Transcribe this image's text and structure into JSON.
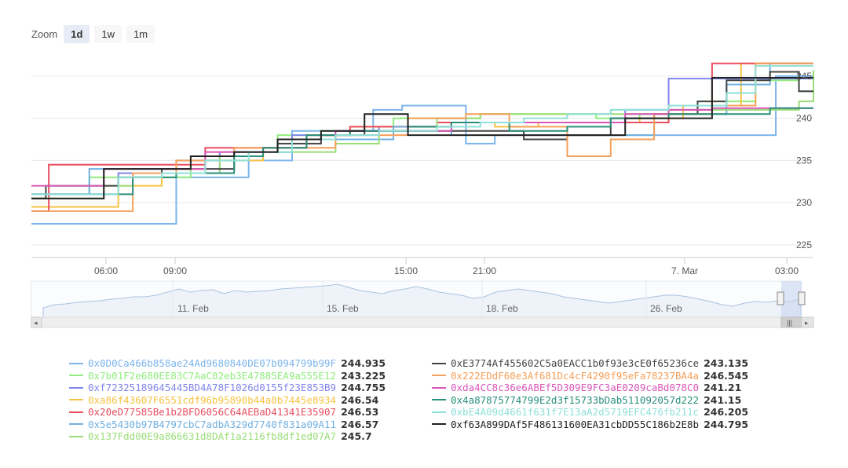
{
  "zoom": {
    "label": "Zoom",
    "buttons": [
      "1d",
      "1w",
      "1m"
    ],
    "active": 0
  },
  "navigator": {
    "labels": [
      "11. Feb",
      "15. Feb",
      "18. Feb",
      "26. Feb"
    ],
    "scroll_grip": "|||",
    "scroll_left": "◂",
    "scroll_right": "▸"
  },
  "chart_data": {
    "type": "line",
    "step": true,
    "x_ticks": [
      "06:00",
      "09:00",
      "15:00",
      "21:00",
      "7. Mar",
      "03:00"
    ],
    "y_ticks": [
      225,
      230,
      235,
      240,
      245
    ],
    "ylim": [
      223.5,
      247.5
    ],
    "y_axis_side": "right",
    "grid": true,
    "legend_position": "bottom",
    "series": [
      {
        "name": "0x0D0Ca466b858ae24Ad9680840DE07b094799b99F",
        "last": "244.935",
        "color": "#7cb5ec",
        "x": [
          0,
          5,
          7,
          7.5,
          9,
          10,
          11.8,
          12.8,
          15,
          16,
          17.5,
          23.5,
          25.5,
          25.7
        ],
        "y": [
          227.5,
          233,
          233,
          235,
          238.5,
          238.5,
          241,
          241.5,
          237,
          238,
          238,
          238,
          238,
          245
        ]
      },
      {
        "name": "0x7b01F2e680EE83C7AaC02eb3E47885EA9a555E12",
        "last": "243.225",
        "color": "#90ed7d",
        "x": [
          0,
          1,
          2,
          3.5,
          5.5,
          7,
          8.5,
          10,
          11.5,
          12.5,
          14,
          15.5,
          17.5,
          19.5,
          21,
          22,
          23,
          25,
          26.5
        ],
        "y": [
          231,
          231,
          233,
          233,
          235.5,
          236,
          238,
          238.5,
          239,
          240,
          240,
          240.5,
          240.5,
          240,
          240.5,
          240.5,
          242,
          244.5,
          243.2
        ]
      },
      {
        "name": "0xf72325189645445BD4A78F1026d0155f23E853B9",
        "last": "244.755",
        "color": "#8085e9",
        "x": [
          0,
          1.5,
          3,
          5,
          6.5,
          7.5,
          9,
          10.5,
          12,
          14,
          15.5,
          17,
          19,
          20.5,
          22
        ],
        "y": [
          231,
          231,
          233.5,
          233.5,
          236,
          236,
          238,
          238.5,
          239,
          239.5,
          239.5,
          239.5,
          239.5,
          241,
          244.7
        ]
      },
      {
        "name": "0xa86f43607F6551cdf96b95890b44a0b7445e8934",
        "last": "246.54",
        "color": "#f7c342",
        "x": [
          0,
          1,
          3,
          4.5,
          6,
          8,
          9.5,
          11,
          13,
          14.5,
          16,
          17.5,
          19,
          21,
          22.5,
          24.5
        ],
        "y": [
          229.5,
          229.5,
          232,
          234,
          235,
          236.5,
          238,
          239,
          239,
          239.5,
          239,
          239.5,
          239.5,
          240,
          241.5,
          246.5
        ]
      },
      {
        "name": "0x20eD77585Be1b2BFD6056C64AEBaD41341E35907",
        "last": "246.53",
        "color": "#e94f62",
        "x": [
          0,
          0.6,
          2.5,
          4,
          6,
          8,
          9.5,
          11,
          12.5,
          14,
          15.5,
          17,
          19,
          20.5,
          22,
          23.5
        ],
        "y": [
          229,
          234.5,
          234.5,
          234.5,
          236.5,
          236.5,
          238,
          239,
          239,
          239.5,
          239.5,
          239.5,
          239.5,
          239.5,
          241,
          246.5
        ]
      },
      {
        "name": "0x5e5430b97B4797cbC7adbA329d7740f831a09A11",
        "last": "246.57",
        "color": "#6fb0e0",
        "x": [
          0,
          1,
          2,
          4,
          5,
          6.5,
          7.5,
          9,
          10.5,
          12.5,
          14.5,
          16,
          18,
          20,
          21.5,
          24,
          25.5
        ],
        "y": [
          231,
          231,
          234,
          234,
          235,
          235.5,
          236,
          237.5,
          237.5,
          239,
          238,
          238,
          238,
          238,
          240.5,
          244,
          246.5
        ]
      },
      {
        "name": "0x137Fdd00E9a866631d8DAf1a2116fb8df1ed07A7",
        "last": "245.7",
        "color": "#99dd77",
        "x": [
          0,
          2.5,
          3.5,
          5,
          6.5,
          7.5,
          9,
          10.5,
          12,
          14,
          15.5,
          17.5,
          19.5,
          22,
          24,
          26.5,
          27
        ],
        "y": [
          230.5,
          232,
          233,
          233.5,
          235.5,
          236,
          236,
          237,
          238.5,
          240,
          240.5,
          240.5,
          240.5,
          241,
          241,
          242,
          245.7
        ]
      },
      {
        "name": "0xE3774Af455602C5a0EACC1b0f93e3cE0f65236ce",
        "last": "243.135",
        "color": "#444444",
        "x": [
          0,
          0.5,
          2,
          3,
          4.5,
          6,
          7,
          8.5,
          10,
          11.5,
          13,
          15,
          17,
          18.5,
          20,
          21.5,
          23,
          24,
          25.5,
          26.5
        ],
        "y": [
          230.5,
          232,
          232,
          233,
          234,
          234,
          236,
          237,
          238,
          238.5,
          238.5,
          238.5,
          237.5,
          238,
          240,
          240.5,
          242,
          244.5,
          245.5,
          243.2
        ]
      },
      {
        "name": "0x222EDdF60e3Af681Dc4cF4290f95eFa78237BA4a",
        "last": "246.545",
        "color": "#f5a05a",
        "x": [
          0,
          2,
          3.5,
          5,
          7,
          8.5,
          10.5,
          11.5,
          13,
          15,
          16.5,
          18.5,
          20,
          21.5,
          23.5,
          25
        ],
        "y": [
          229,
          229,
          233.5,
          235,
          236.5,
          236.5,
          238,
          238,
          240,
          240.5,
          239,
          235.5,
          237.5,
          240.5,
          241.5,
          246.5
        ]
      },
      {
        "name": "0xda4CC8c36e6ABEf5D309E9FC3aE0209caBd078C0",
        "last": "241.21",
        "color": "#d857b8",
        "x": [
          0,
          0.8,
          2.5,
          4,
          6,
          8,
          9,
          10.5,
          13,
          14.5,
          16,
          17.5,
          19,
          20.5,
          22,
          23.5
        ],
        "y": [
          232,
          232,
          234,
          234,
          236,
          236.5,
          237.5,
          238.5,
          238.5,
          239.5,
          239.5,
          239.5,
          239.5,
          240.5,
          241,
          241.2
        ]
      },
      {
        "name": "0x4a87875774799E2d3f15733bDab511092057d222",
        "last": "241.15",
        "color": "#2a8f7a",
        "x": [
          0,
          1.5,
          3.5,
          5,
          7,
          8,
          9.5,
          11,
          13,
          14.5,
          16.5,
          18.5,
          20,
          22,
          24,
          25.5
        ],
        "y": [
          231,
          231,
          233,
          233.5,
          235.5,
          236.5,
          238,
          238.5,
          239,
          239.5,
          238.5,
          239,
          240,
          240.5,
          240.5,
          241.2
        ]
      },
      {
        "name": "0xbE4A09d4661f631f7E13aA2d5719EFC476fb211c",
        "last": "246.205",
        "color": "#8fe0d8",
        "x": [
          0,
          1,
          3,
          4.5,
          6,
          7.5,
          9,
          10.5,
          12,
          14,
          15.5,
          17,
          18.5,
          20,
          22,
          24,
          25
        ],
        "y": [
          231,
          231,
          233,
          233.5,
          235,
          236,
          237.5,
          238,
          238.5,
          239,
          239.5,
          240,
          240.5,
          241,
          241.5,
          243,
          246.2
        ]
      },
      {
        "name": "0xf63A899DAf5F486131600EA31cbDD55C186b2E8b",
        "last": "244.795",
        "color": "#222222",
        "x": [
          0,
          0.5,
          2.5,
          4,
          5.5,
          7,
          8.5,
          10,
          11.5,
          13,
          15,
          17,
          18.5,
          20.5,
          22,
          23.5
        ],
        "y": [
          230.5,
          230.5,
          234,
          234,
          235.5,
          236,
          237.5,
          238.5,
          240.5,
          238,
          238,
          238,
          238,
          240,
          240,
          244.8
        ]
      }
    ]
  }
}
